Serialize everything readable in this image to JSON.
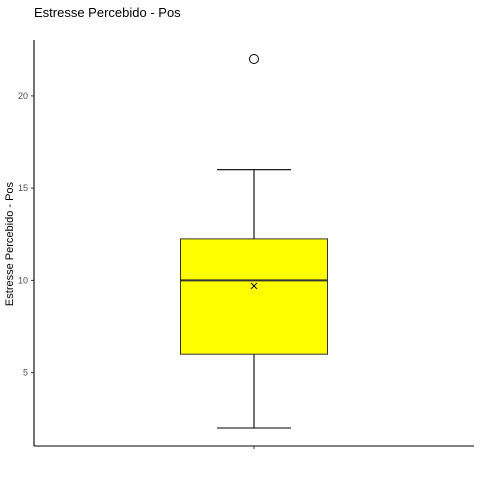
{
  "chart_data": {
    "type": "box",
    "title": "Estresse Percebido - Pos",
    "xlabel": "",
    "ylabel": "Estresse Percebido - Pos",
    "ylim": [
      1,
      23
    ],
    "yticks": [
      5,
      10,
      15,
      20
    ],
    "ytick_labels": [
      "5",
      "10",
      "15",
      "20"
    ],
    "box": {
      "whisker_low": 2,
      "q1": 6,
      "median": 10,
      "q3": 12.25,
      "whisker_high": 16,
      "mean": 9.7,
      "outliers": [
        22
      ]
    },
    "grid": false,
    "legend": "none",
    "colors": {
      "box_fill": "#ffff00",
      "box_stroke": "#333333",
      "axis": "#000000"
    }
  }
}
